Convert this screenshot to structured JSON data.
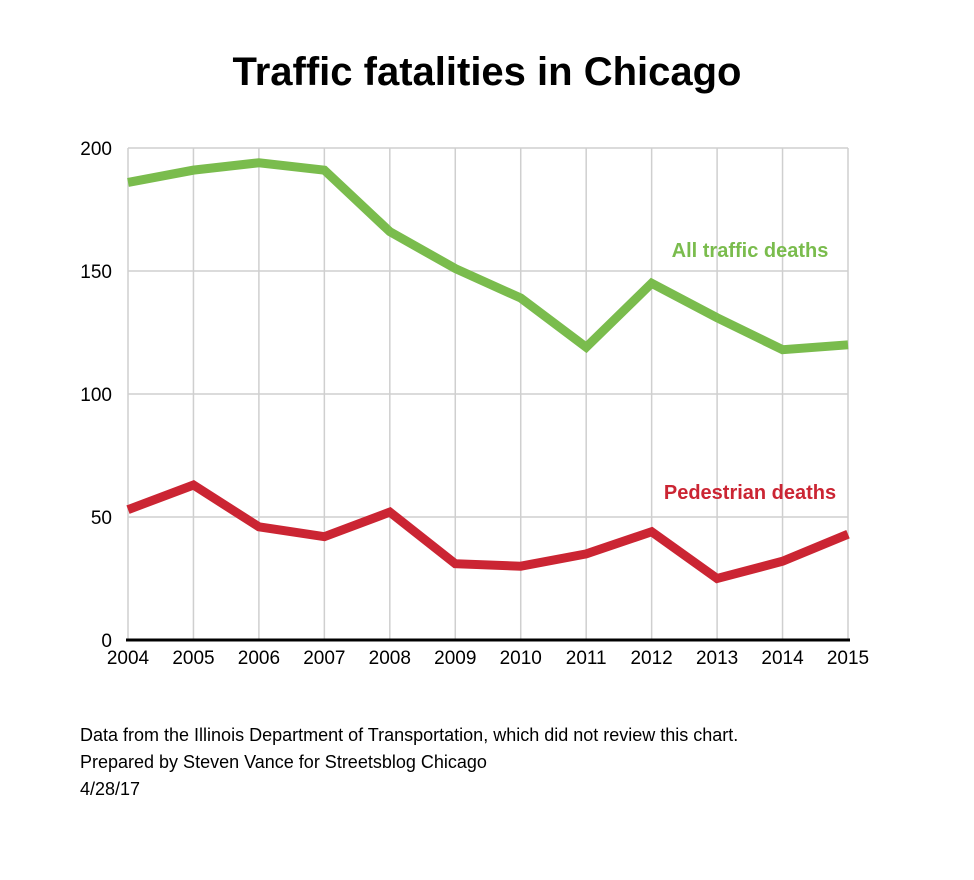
{
  "title": "Traffic fatalities in Chicago",
  "chart_data": {
    "type": "line",
    "x": [
      2004,
      2005,
      2006,
      2007,
      2008,
      2009,
      2010,
      2011,
      2012,
      2013,
      2014,
      2015
    ],
    "series": [
      {
        "name": "All traffic deaths",
        "color": "#7abc4d",
        "values": [
          186,
          191,
          194,
          191,
          166,
          151,
          139,
          119,
          145,
          131,
          118,
          120
        ]
      },
      {
        "name": "Pedestrian deaths",
        "color": "#cb2533",
        "values": [
          53,
          63,
          46,
          42,
          52,
          31,
          30,
          35,
          44,
          25,
          32,
          43
        ]
      }
    ],
    "ylim": [
      0,
      200
    ],
    "y_ticks": [
      0,
      50,
      100,
      150,
      200
    ],
    "grid": true,
    "legend_position": "inline-annotations",
    "xlabel": "",
    "ylabel": ""
  },
  "colors": {
    "grid": "#cfcfcf",
    "axis": "#000000",
    "background": "#ffffff",
    "title_text": "#000000"
  },
  "footer": {
    "lines": [
      "Data from the Illinois Department of Transportation, which did not review this chart.",
      "Prepared by Steven Vance for Streetsblog Chicago",
      "4/28/17"
    ]
  }
}
